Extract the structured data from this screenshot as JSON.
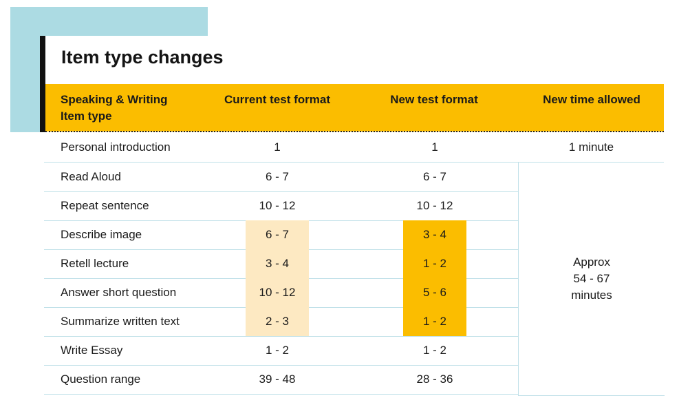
{
  "title": "Item type changes",
  "header": {
    "col1_line1": "Speaking & Writing",
    "col1_line2": "Item type",
    "col2": "Current test format",
    "col3": "New test format",
    "col4": "New time allowed"
  },
  "first_row": {
    "name": "Personal introduction",
    "current": "1",
    "new": "1",
    "time": "1 minute"
  },
  "rows": [
    {
      "name": "Read Aloud",
      "current": "6 - 7",
      "new": "6 - 7"
    },
    {
      "name": "Repeat sentence",
      "current": "10 - 12",
      "new": "10 - 12"
    },
    {
      "name": "Describe image",
      "current": "6 - 7",
      "new": "3 - 4"
    },
    {
      "name": "Retell lecture",
      "current": "3 - 4",
      "new": "1 - 2"
    },
    {
      "name": "Answer short question",
      "current": "10 - 12",
      "new": "5 - 6"
    },
    {
      "name": "Summarize written text",
      "current": "2 - 3",
      "new": "1 - 2"
    },
    {
      "name": "Write Essay",
      "current": "1 - 2",
      "new": "1 - 2"
    },
    {
      "name": "Question range",
      "current": "39 - 48",
      "new": "28 - 36"
    }
  ],
  "time_allowed": {
    "line1": "Approx",
    "line2": "54 - 67",
    "line3": "minutes"
  },
  "colors": {
    "accent_blue": "#acdbe3",
    "header_yellow": "#fbbd00",
    "highlight_light": "#fde9c2",
    "highlight_strong": "#fbbd00"
  }
}
